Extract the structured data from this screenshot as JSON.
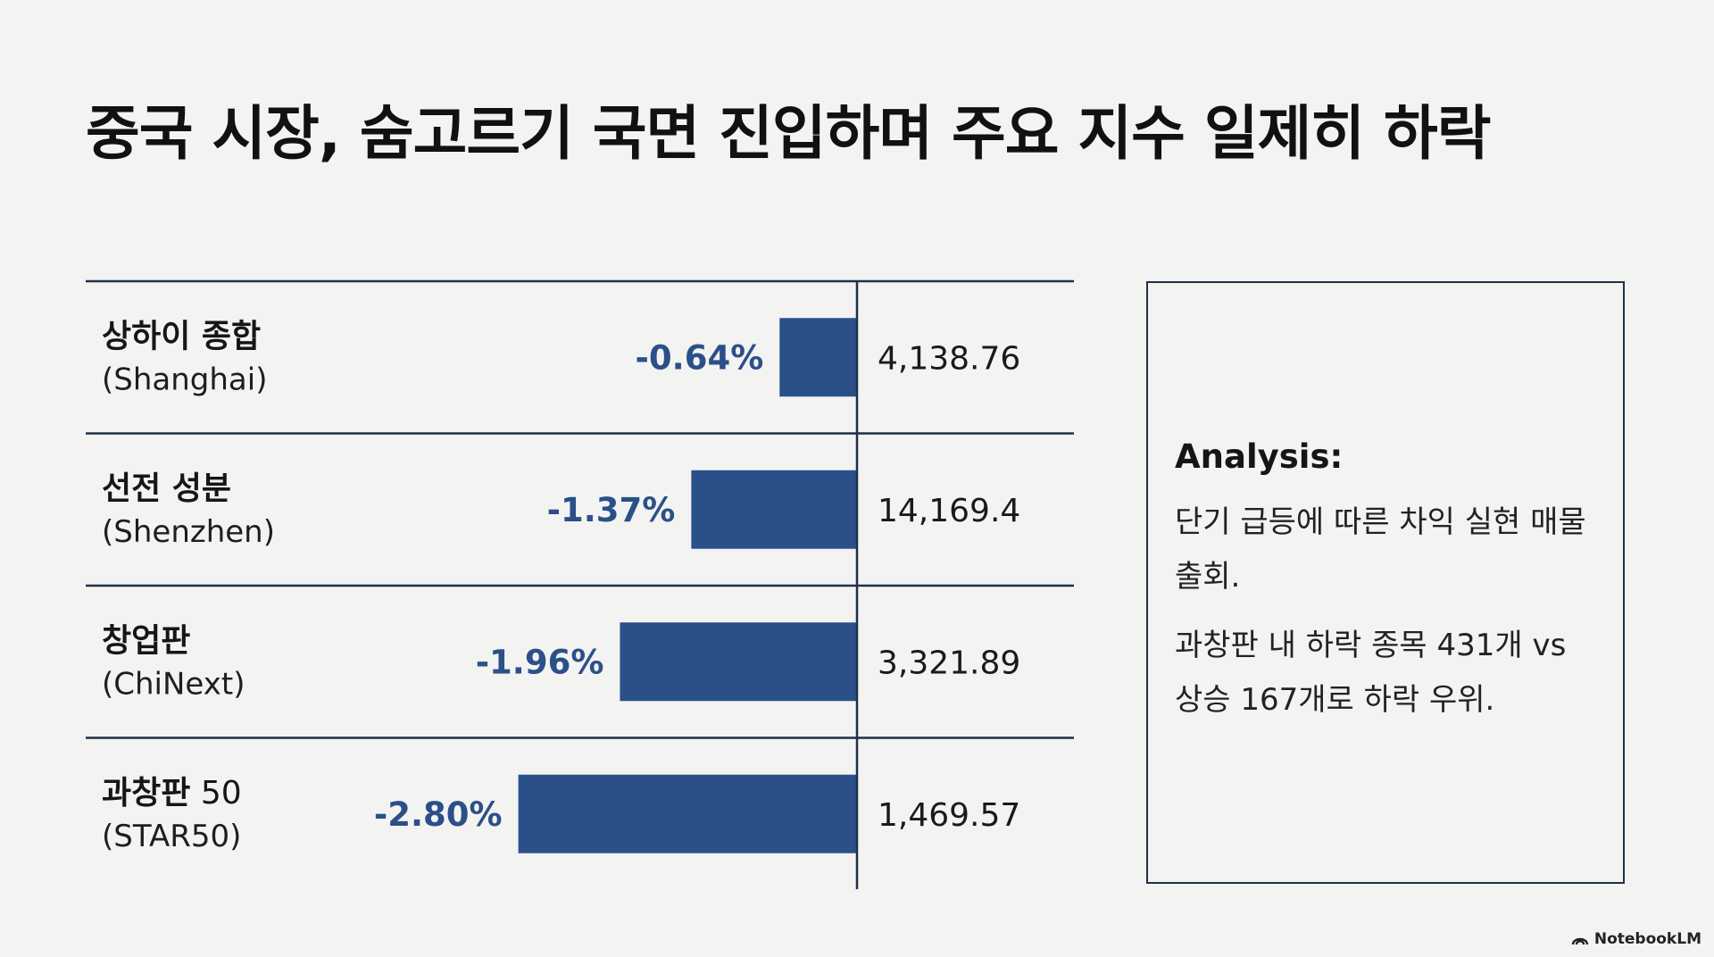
{
  "title": "중국 시장, 숨고르기 국면 진입하며 주요 지수 일제히 하락",
  "chart_data": {
    "type": "bar",
    "orientation": "horizontal",
    "categories": [
      {
        "name": "상하이 종합",
        "name_suffix": "",
        "sub": "(Shanghai)"
      },
      {
        "name": "선전 성분",
        "name_suffix": "",
        "sub": "(Shenzhen)"
      },
      {
        "name": "창업판",
        "name_suffix": "",
        "sub": "(ChiNext)"
      },
      {
        "name": "과창판",
        "name_suffix": " 50",
        "sub": "(STAR50)"
      }
    ],
    "values": [
      -0.64,
      -1.37,
      -1.96,
      -2.8
    ],
    "value_labels": [
      "-0.64%",
      "-1.37%",
      "-1.96%",
      "-2.80%"
    ],
    "index_levels": [
      "4,138.76",
      "14,169.4",
      "3,321.89",
      "1,469.57"
    ],
    "xlim": [
      -3.0,
      0
    ],
    "bar_color": "#2b5089",
    "label_color": "#2b5089",
    "line_color": "#1f3049"
  },
  "analysis": {
    "heading": "Analysis:",
    "paragraphs": [
      "단기 급등에 따른 차익 실현 매물 출회.",
      "과창판 내 하락 종목 431개 vs 상승 167개로 하락 우위."
    ]
  },
  "brand": {
    "name": "NotebookLM",
    "icon": "notebooklm-logo-icon"
  }
}
